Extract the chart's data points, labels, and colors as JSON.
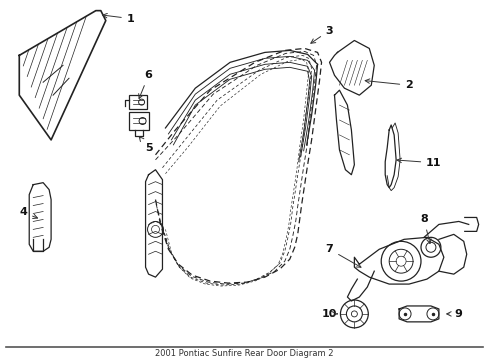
{
  "title": "2001 Pontiac Sunfire Rear Door Diagram 2",
  "background_color": "#ffffff",
  "figure_width": 4.89,
  "figure_height": 3.6,
  "dpi": 100,
  "line_color": "#222222",
  "label_fontsize": 8,
  "caption_fontsize": 6
}
